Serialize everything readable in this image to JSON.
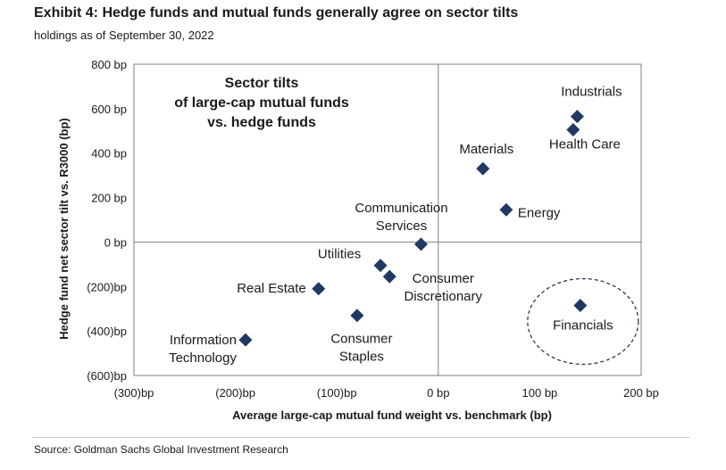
{
  "header": {
    "title": "Exhibit 4: Hedge funds and mutual funds generally agree on sector tilts",
    "subtitle": "holdings as of September 30, 2022"
  },
  "footer": {
    "source": "Source: Goldman Sachs Global Investment Research"
  },
  "colors": {
    "marker": "#1f3864",
    "axis": "#7f7f7f",
    "text": "#1a1a1a"
  },
  "chart_data": {
    "type": "scatter",
    "title": "",
    "annotation": [
      "Sector tilts",
      "of large-cap mutual funds",
      "vs. hedge funds"
    ],
    "xlabel": "Average large-cap mutual fund weight vs. benchmark (bp)",
    "ylabel": "Hedge fund net sector tilt vs. R3000 (bp)",
    "xlim": [
      -300,
      200
    ],
    "ylim": [
      -600,
      800
    ],
    "xticks": [
      -300,
      -200,
      -100,
      0,
      100,
      200
    ],
    "xtick_labels": [
      "(300)bp",
      "(200)bp",
      "(100)bp",
      "0 bp",
      "100 bp",
      "200 bp"
    ],
    "yticks": [
      800,
      600,
      400,
      200,
      0,
      -200,
      -400,
      -600
    ],
    "ytick_labels": [
      "800 bp",
      "600 bp",
      "400 bp",
      "200 bp",
      "0 bp",
      "(200)bp",
      "(400)bp",
      "(600)bp"
    ],
    "grid": false,
    "highlight": "Financials",
    "points": [
      {
        "label": [
          "Industrials"
        ],
        "x": 137,
        "y": 565
      },
      {
        "label": [
          "Health Care"
        ],
        "x": 133,
        "y": 505
      },
      {
        "label": [
          "Materials"
        ],
        "x": 44,
        "y": 330
      },
      {
        "label": [
          "Energy"
        ],
        "x": 67,
        "y": 145
      },
      {
        "label": [
          "Communication",
          "Services"
        ],
        "x": -17,
        "y": -10
      },
      {
        "label": [
          "Utilities"
        ],
        "x": -57,
        "y": -105
      },
      {
        "label": [
          "Consumer",
          "Discretionary"
        ],
        "x": -48,
        "y": -155
      },
      {
        "label": [
          "Real Estate"
        ],
        "x": -118,
        "y": -210
      },
      {
        "label": [
          "Consumer",
          "Staples"
        ],
        "x": -80,
        "y": -330
      },
      {
        "label": [
          "Information",
          "Technology"
        ],
        "x": -190,
        "y": -440
      },
      {
        "label": [
          "Financials"
        ],
        "x": 140,
        "y": -285
      }
    ]
  }
}
